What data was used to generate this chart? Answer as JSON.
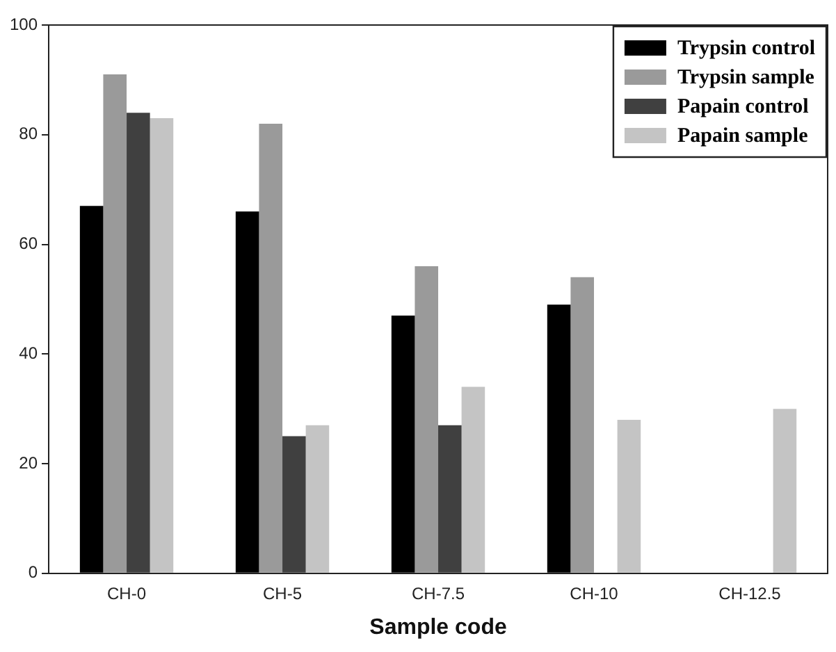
{
  "chart_data": {
    "type": "bar",
    "xlabel": "Sample code",
    "categories": [
      "CH-0",
      "CH-5",
      "CH-7.5",
      "CH-10",
      "CH-12.5"
    ],
    "series": [
      {
        "name": "Trypsin control",
        "color": "#000000",
        "values": [
          67,
          66,
          47,
          49,
          null
        ]
      },
      {
        "name": "Trypsin sample",
        "color": "#9a9a9a",
        "values": [
          91,
          82,
          56,
          54,
          null
        ]
      },
      {
        "name": "Papain control",
        "color": "#404040",
        "values": [
          84,
          25,
          27,
          null,
          null
        ]
      },
      {
        "name": "Papain sample",
        "color": "#c4c4c4",
        "values": [
          83,
          27,
          34,
          28,
          30
        ]
      }
    ],
    "ylim": [
      0,
      100
    ],
    "yticks": [
      0,
      20,
      40,
      60,
      80,
      100
    ],
    "grid": false,
    "legend": "top right"
  }
}
